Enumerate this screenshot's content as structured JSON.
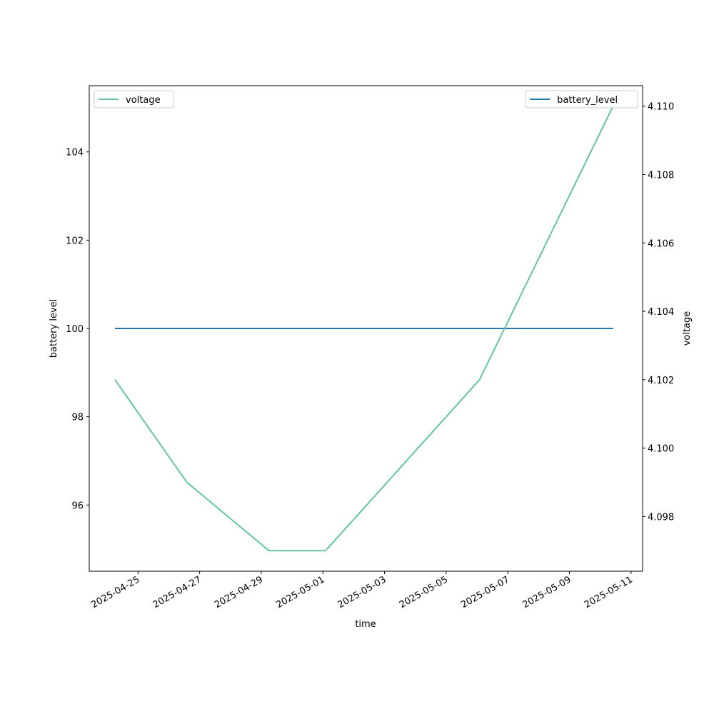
{
  "chart_data": {
    "type": "line",
    "xlabel": "time",
    "ylabel_left": "battery level",
    "ylabel_right": "voltage",
    "x_ticks": [
      "2025-04-25",
      "2025-04-27",
      "2025-04-29",
      "2025-05-01",
      "2025-05-03",
      "2025-05-05",
      "2025-05-07",
      "2025-05-09",
      "2025-05-11"
    ],
    "xlim": [
      "2025-04-23T10:00",
      "2025-05-11T09:00"
    ],
    "left_axis": {
      "ylim": [
        94.5,
        105.5
      ],
      "ticks": [
        96,
        98,
        100,
        102,
        104
      ]
    },
    "right_axis": {
      "ylim": [
        4.0964,
        4.1106
      ],
      "ticks": [
        "4.098",
        "4.100",
        "4.102",
        "4.104",
        "4.106",
        "4.108",
        "4.110"
      ]
    },
    "series": [
      {
        "name": "battery_level",
        "axis": "left",
        "color": "#1f77b4",
        "x": [
          "2025-04-24T06:00",
          "2025-05-10T10:00"
        ],
        "y": [
          100,
          100
        ]
      },
      {
        "name": "voltage",
        "axis": "right",
        "color": "#66c2a5",
        "x": [
          "2025-04-24T06:00",
          "2025-04-26T14:00",
          "2025-04-29T06:00",
          "2025-05-01T02:00",
          "2025-05-06T02:00",
          "2025-05-10T10:00"
        ],
        "y": [
          4.102,
          4.099,
          4.097,
          4.097,
          4.102,
          4.11
        ]
      }
    ],
    "legends": [
      {
        "position": "top-left",
        "entries": [
          "voltage"
        ]
      },
      {
        "position": "top-right",
        "entries": [
          "battery_level"
        ]
      }
    ]
  }
}
